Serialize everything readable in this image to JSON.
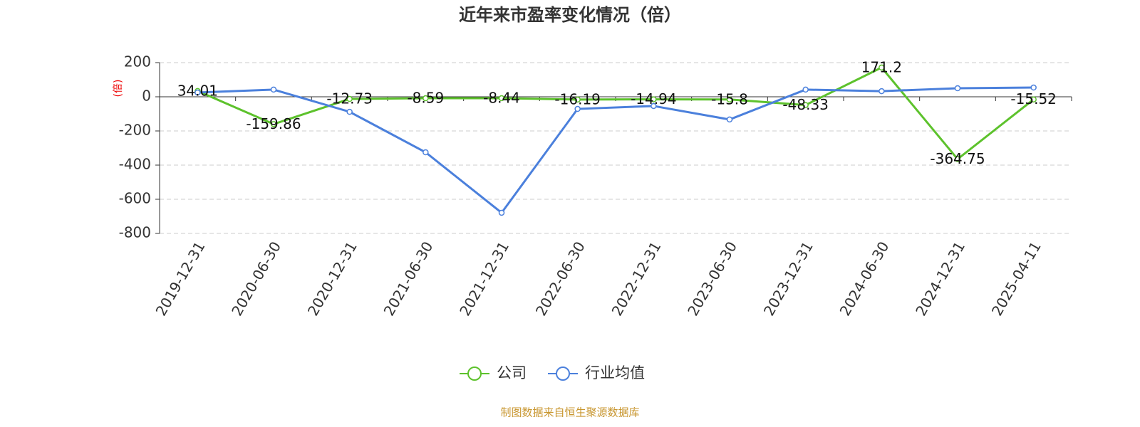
{
  "chart_data": {
    "type": "line",
    "title": "近年来市盈率变化情况（倍）",
    "y_label": "(倍)",
    "categories": [
      "2019-12-31",
      "2020-06-30",
      "2020-12-31",
      "2021-06-30",
      "2021-12-31",
      "2022-06-30",
      "2022-12-31",
      "2023-06-30",
      "2023-12-31",
      "2024-06-30",
      "2024-12-31",
      "2025-04-11"
    ],
    "series": [
      {
        "name": "公司",
        "color": "#5dc22c",
        "values": [
          34.01,
          -159.86,
          -12.73,
          -8.59,
          -8.44,
          -16.19,
          -14.94,
          -15.8,
          -48.33,
          171.2,
          -364.75,
          -15.52
        ],
        "show_labels": true
      },
      {
        "name": "行业均值",
        "color": "#4b80dc",
        "values": [
          25,
          42,
          -88,
          -325,
          -679,
          -71,
          -54,
          -133,
          42,
          33,
          50,
          54
        ]
      }
    ],
    "ylim": [
      -800,
      200
    ],
    "yticks": [
      200,
      0,
      -200,
      -400,
      -600,
      -800
    ],
    "grid": true,
    "source": "制图数据来自恒生聚源数据库"
  }
}
